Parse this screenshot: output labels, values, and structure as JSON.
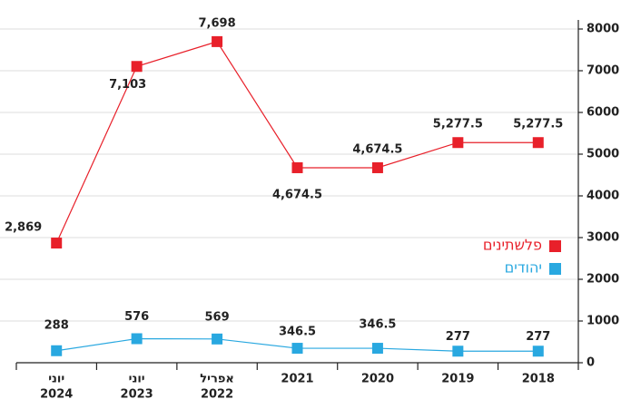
{
  "chart_data": {
    "type": "line",
    "categories": [
      [
        "יוני",
        "2024"
      ],
      [
        "יוני",
        "2023"
      ],
      [
        "אפריל",
        "2022"
      ],
      [
        "2021"
      ],
      [
        "2020"
      ],
      [
        "2019"
      ],
      [
        "2018"
      ]
    ],
    "series": [
      {
        "name": "פלשתינים",
        "color": "#e8202a",
        "values": [
          2869,
          7103,
          7698,
          4674.5,
          4674.5,
          5277.5,
          5277.5
        ],
        "value_labels": [
          "2,869",
          "7,103",
          "7,698",
          "4,674.5",
          "4,674.5",
          "5,277.5",
          "5,277.5"
        ]
      },
      {
        "name": "יהודים",
        "color": "#29a8e0",
        "values": [
          288,
          576,
          569,
          346.5,
          346.5,
          277,
          277
        ]
      }
    ],
    "ylim": [
      0,
      8000
    ],
    "yticks": [
      0,
      1000,
      2000,
      3000,
      4000,
      5000,
      6000,
      7000,
      8000
    ],
    "grid": true,
    "legend": "right"
  }
}
